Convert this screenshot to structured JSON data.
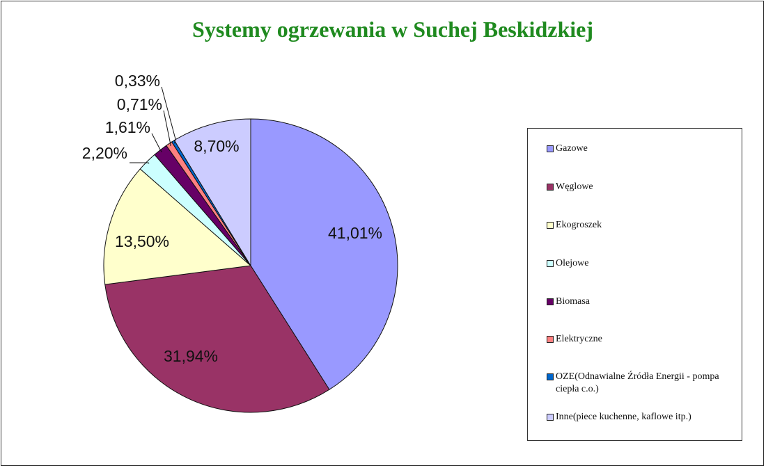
{
  "chart_data": {
    "type": "pie",
    "title": "Systemy ogrzewania w Suchej Beskidzkiej",
    "legend_position": "right",
    "slices": [
      {
        "name": "Gazowe",
        "value": 41.01,
        "label": "41,01%",
        "color": "#9999ff"
      },
      {
        "name": "Węglowe",
        "value": 31.94,
        "label": "31,94%",
        "color": "#993366"
      },
      {
        "name": "Ekogroszek",
        "value": 13.5,
        "label": "13,50%",
        "color": "#ffffcc"
      },
      {
        "name": "Olejowe",
        "value": 2.2,
        "label": "2,20%",
        "color": "#ccffff"
      },
      {
        "name": "Biomasa",
        "value": 1.61,
        "label": "1,61%",
        "color": "#660066"
      },
      {
        "name": "Elektryczne",
        "value": 0.71,
        "label": "0,71%",
        "color": "#ff8080"
      },
      {
        "name": "OZE(Odnawialne Źródła Energii - pompa ciepła c.o.)",
        "value": 0.33,
        "label": "0,33%",
        "color": "#0066cc"
      },
      {
        "name": "Inne(piece kuchenne, kaflowe itp.)",
        "value": 8.7,
        "label": "8,70%",
        "color": "#ccccff"
      }
    ]
  }
}
